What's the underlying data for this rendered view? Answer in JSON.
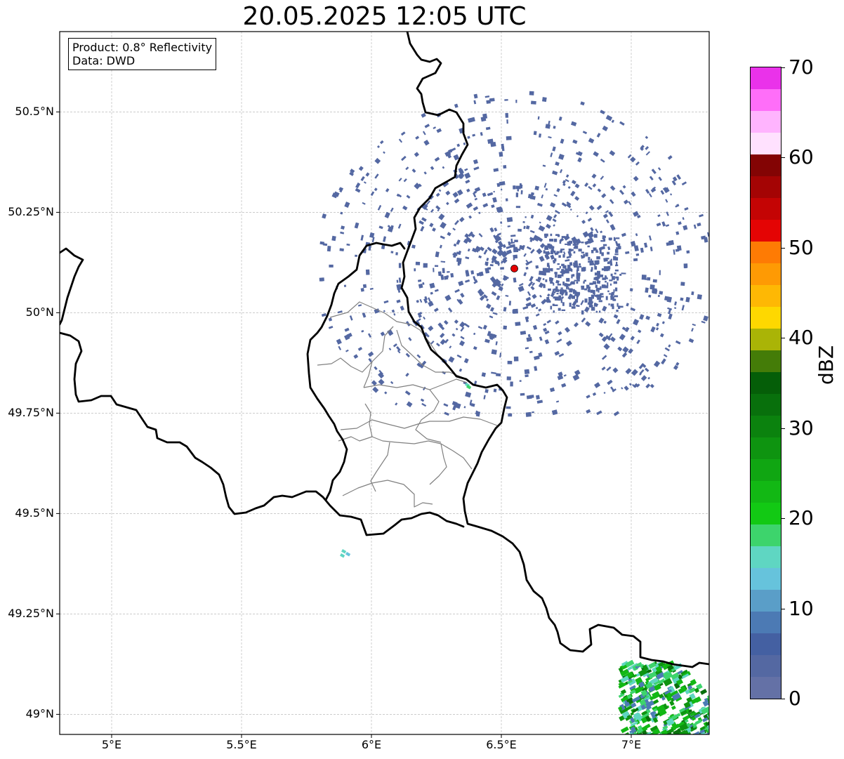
{
  "title": "20.05.2025 12:05 UTC",
  "info_box": {
    "product": "Product: 0.8° Reflectivity",
    "data": "Data: DWD"
  },
  "map": {
    "extent": {
      "lon_min": 4.8,
      "lon_max": 7.3,
      "lat_min": 48.95,
      "lat_max": 50.7
    },
    "lat_ticks": [
      {
        "value": 50.5,
        "label": "50.5°N"
      },
      {
        "value": 50.25,
        "label": "50.25°N"
      },
      {
        "value": 50.0,
        "label": "50°N"
      },
      {
        "value": 49.75,
        "label": "49.75°N"
      },
      {
        "value": 49.5,
        "label": "49.5°N"
      },
      {
        "value": 49.25,
        "label": "49.25°N"
      },
      {
        "value": 49.0,
        "label": "49°N"
      }
    ],
    "lon_ticks": [
      {
        "value": 5.0,
        "label": "5°E"
      },
      {
        "value": 5.5,
        "label": "5.5°E"
      },
      {
        "value": 6.0,
        "label": "6°E"
      },
      {
        "value": 6.5,
        "label": "6.5°E"
      },
      {
        "value": 7.0,
        "label": "7°E"
      }
    ],
    "grid": true,
    "radar_site": {
      "lon": 6.55,
      "lat": 50.11,
      "color": "#e60000"
    },
    "colors": {
      "national_border": "#000000",
      "regional_border": "#808080",
      "grid": "#bbbbbb"
    }
  },
  "colorbar": {
    "label": "dBZ",
    "min": 0,
    "max": 70,
    "ticks": [
      "0",
      "10",
      "20",
      "30",
      "40",
      "50",
      "60",
      "70"
    ],
    "colors": [
      "#6471a6",
      "#5468a2",
      "#4460a2",
      "#4c7ab4",
      "#5a9ec8",
      "#66c3dc",
      "#5fd6c2",
      "#3dd46c",
      "#12c914",
      "#12b814",
      "#10a612",
      "#0e9410",
      "#0b820e",
      "#08700c",
      "#055e08",
      "#447c08",
      "#aab406",
      "#fed800",
      "#feb804",
      "#fe9a04",
      "#fe7b04",
      "#e40404",
      "#c40404",
      "#a40404",
      "#830404",
      "#ffe1fe",
      "#ffb4fe",
      "#ff6ef9",
      "#ea32ea"
    ]
  }
}
